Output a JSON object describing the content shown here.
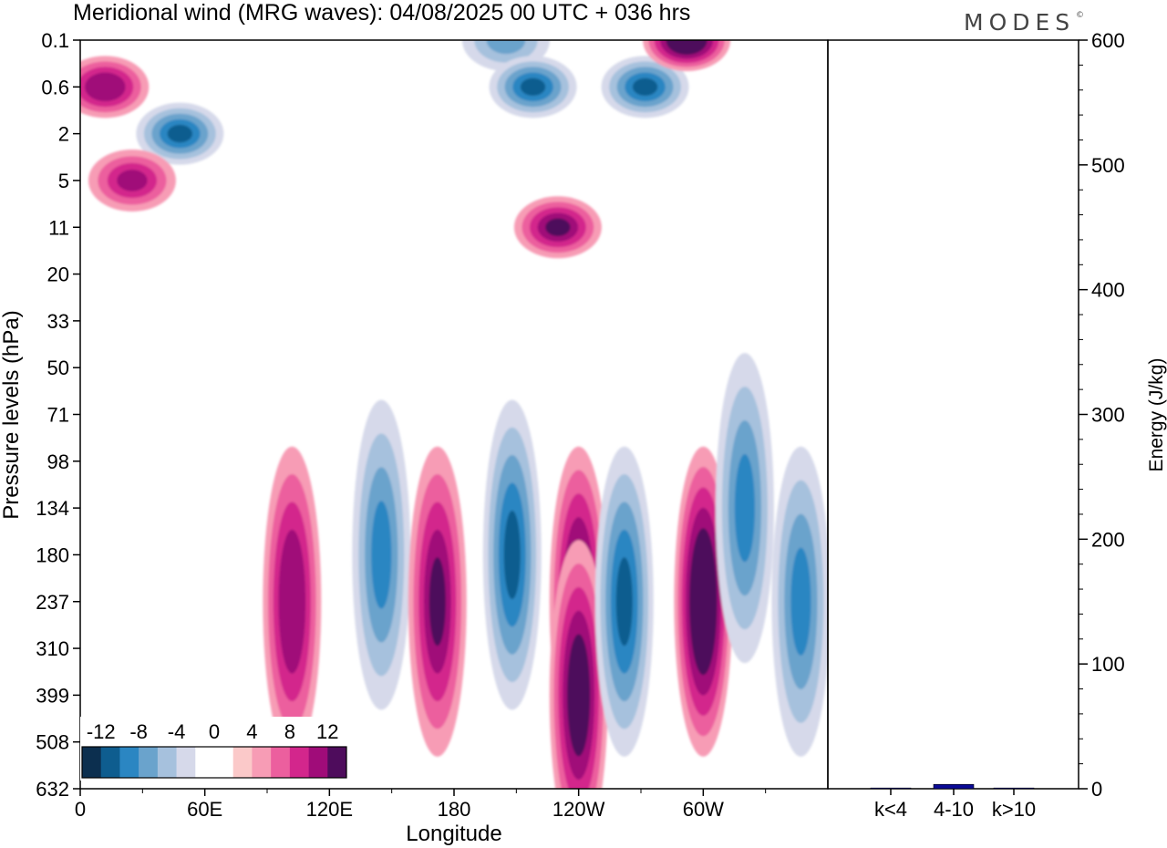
{
  "chart_data": [
    {
      "type": "heatmap",
      "title": "Meridional wind (MRG waves):  04/08/2025  00 UTC  + 036 hrs",
      "xlabel": "Longitude",
      "ylabel": "Pressure levels (hPa)",
      "x_ticks": [
        "0",
        "60E",
        "120E",
        "180",
        "120W",
        "60W"
      ],
      "x_range_deg": [
        0,
        360
      ],
      "y_ticks": [
        "0.1",
        "0.6",
        "2",
        "5",
        "11",
        "20",
        "33",
        "50",
        "71",
        "98",
        "134",
        "180",
        "237",
        "310",
        "399",
        "508",
        "632"
      ],
      "colorbar": {
        "labels": [
          "-12",
          "-8",
          "-4",
          "0",
          "4",
          "8",
          "12"
        ],
        "colors": [
          "#0c2f4f",
          "#0e5d8f",
          "#2b86c2",
          "#6aa3cc",
          "#a6c1dd",
          "#d6d9ea",
          "#ffffff",
          "#ffffff",
          "#fbc9c9",
          "#f79cb5",
          "#ec5f9e",
          "#d3268c",
          "#a00c79",
          "#4e0c5c"
        ]
      },
      "features": [
        {
          "lon": 205,
          "level": "0.1",
          "value": -6
        },
        {
          "lon": 218,
          "level": "0.6",
          "value": -10
        },
        {
          "lon": 272,
          "level": "0.6",
          "value": -10
        },
        {
          "lon": 292,
          "level": "0.1",
          "value": 14
        },
        {
          "lon": 12,
          "level": "0.6",
          "value": 9
        },
        {
          "lon": 48,
          "level": "2",
          "value": -10
        },
        {
          "lon": 25,
          "level": "5",
          "value": 8
        },
        {
          "lon": 230,
          "level": "11",
          "value": 10
        },
        {
          "lon": 145,
          "level": "180",
          "value": -8
        },
        {
          "lon": 102,
          "level": "237",
          "value": 9
        },
        {
          "lon": 172,
          "level": "237",
          "value": 10
        },
        {
          "lon": 208,
          "level": "180",
          "value": -10
        },
        {
          "lon": 240,
          "level": "237",
          "value": 12
        },
        {
          "lon": 240,
          "level": "399",
          "value": 12
        },
        {
          "lon": 262,
          "level": "237",
          "value": -10
        },
        {
          "lon": 300,
          "level": "237",
          "value": 13
        },
        {
          "lon": 320,
          "level": "134",
          "value": -8
        },
        {
          "lon": 347,
          "level": "237",
          "value": -8
        }
      ]
    },
    {
      "type": "bar",
      "ylabel": "Energy (J/kg)",
      "categories": [
        "k<4",
        "4-10",
        "k>10"
      ],
      "values": [
        0.6,
        3.5,
        0.6
      ],
      "ylim": [
        0,
        600
      ],
      "y_ticks": [
        "0",
        "100",
        "200",
        "300",
        "400",
        "500",
        "600"
      ],
      "bar_color": "#0a0a96"
    }
  ],
  "brand": "MODES",
  "brand_mark": "©"
}
